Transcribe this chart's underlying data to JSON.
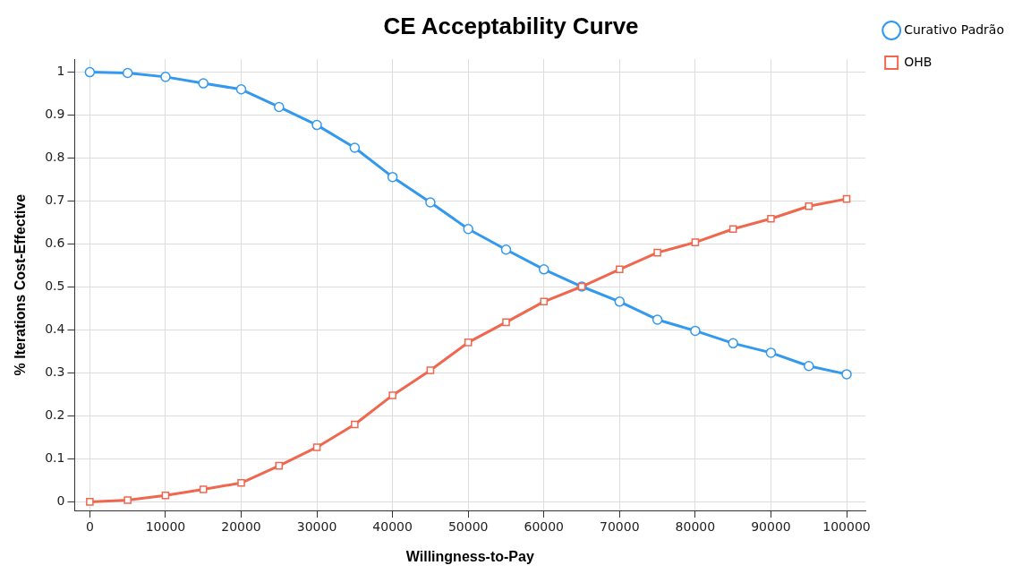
{
  "chart_data": {
    "type": "line",
    "title": "CE Acceptability Curve",
    "xlabel": "Willingness-to-Pay",
    "ylabel": "% Iterations Cost-Effective",
    "x": [
      0,
      5000,
      10000,
      15000,
      20000,
      25000,
      30000,
      35000,
      40000,
      45000,
      50000,
      55000,
      60000,
      65000,
      70000,
      75000,
      80000,
      85000,
      90000,
      95000,
      100000
    ],
    "series": [
      {
        "name": "Curativo Padrão",
        "color": "#3399ee",
        "marker": "circle",
        "values": [
          1.0,
          0.998,
          0.989,
          0.974,
          0.96,
          0.919,
          0.877,
          0.824,
          0.756,
          0.697,
          0.635,
          0.587,
          0.541,
          0.501,
          0.466,
          0.424,
          0.398,
          0.369,
          0.347,
          0.316,
          0.297
        ]
      },
      {
        "name": "OHB",
        "color": "#f0674f",
        "marker": "square",
        "values": [
          0.0,
          0.004,
          0.015,
          0.029,
          0.044,
          0.084,
          0.127,
          0.18,
          0.248,
          0.306,
          0.371,
          0.418,
          0.466,
          0.501,
          0.541,
          0.58,
          0.604,
          0.635,
          0.659,
          0.688,
          0.705
        ]
      }
    ],
    "xlim": [
      -2000,
      102500
    ],
    "xticks": [
      0,
      10000,
      20000,
      30000,
      40000,
      50000,
      60000,
      70000,
      80000,
      90000,
      100000
    ],
    "ylim": [
      -0.02,
      1.03
    ],
    "yticks": [
      0,
      0.1,
      0.2,
      0.3,
      0.4,
      0.5,
      0.6,
      0.7,
      0.8,
      0.9,
      1
    ],
    "grid": true,
    "legend": "top right",
    "line_style": "solid"
  }
}
